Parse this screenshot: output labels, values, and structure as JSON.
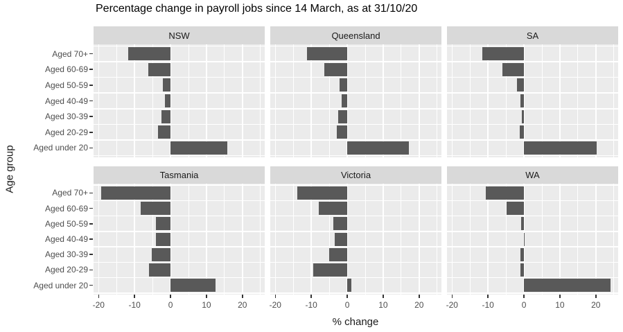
{
  "chart_data": {
    "type": "bar",
    "orientation": "horizontal",
    "title": "Percentage change in payroll jobs since 14 March, as at 31/10/20",
    "xlabel": "% change",
    "ylabel": "Age group",
    "categories": [
      "Aged 70+",
      "Aged 60-69",
      "Aged 50-59",
      "Aged 40-49",
      "Aged 30-39",
      "Aged 20-29",
      "Aged under 20"
    ],
    "x_ticks": [
      -20,
      -10,
      0,
      10,
      20
    ],
    "x_minor_ticks": [
      -15,
      -5,
      5,
      15,
      25
    ],
    "xlim": [
      -21.4,
      26.2
    ],
    "legend": "none",
    "grid": "white major/minor gridlines on grey panel",
    "facet_layout": [
      [
        "NSW",
        "Queensland",
        "SA"
      ],
      [
        "Tasmania",
        "Victoria",
        "WA"
      ]
    ],
    "series": [
      {
        "name": "NSW",
        "values": [
          -11.8,
          -6.1,
          -2.1,
          -1.5,
          -2.5,
          -3.4,
          15.8
        ]
      },
      {
        "name": "Queensland",
        "values": [
          -11.2,
          -6.3,
          -2.1,
          -1.6,
          -2.6,
          -2.9,
          17.1
        ]
      },
      {
        "name": "SA",
        "values": [
          -11.6,
          -6.0,
          -2.0,
          -1.0,
          -0.5,
          -1.1,
          20.3
        ]
      },
      {
        "name": "Tasmania",
        "values": [
          -19.3,
          -8.2,
          -4.1,
          -4.0,
          -5.2,
          -6.0,
          12.5
        ]
      },
      {
        "name": "Victoria",
        "values": [
          -13.8,
          -7.9,
          -3.9,
          -3.5,
          -5.0,
          -9.4,
          1.1
        ]
      },
      {
        "name": "WA",
        "values": [
          -10.7,
          -4.9,
          -0.7,
          -0.1,
          -1.0,
          -1.0,
          24.0
        ]
      }
    ],
    "colors": {
      "bar": "#595959",
      "panel_background": "#ebebeb",
      "strip_background": "#d9d9d9",
      "gridline": "#ffffff",
      "axis_text": "#4d4d4d",
      "tick_mark": "#333333",
      "title_text": "#000000"
    }
  }
}
